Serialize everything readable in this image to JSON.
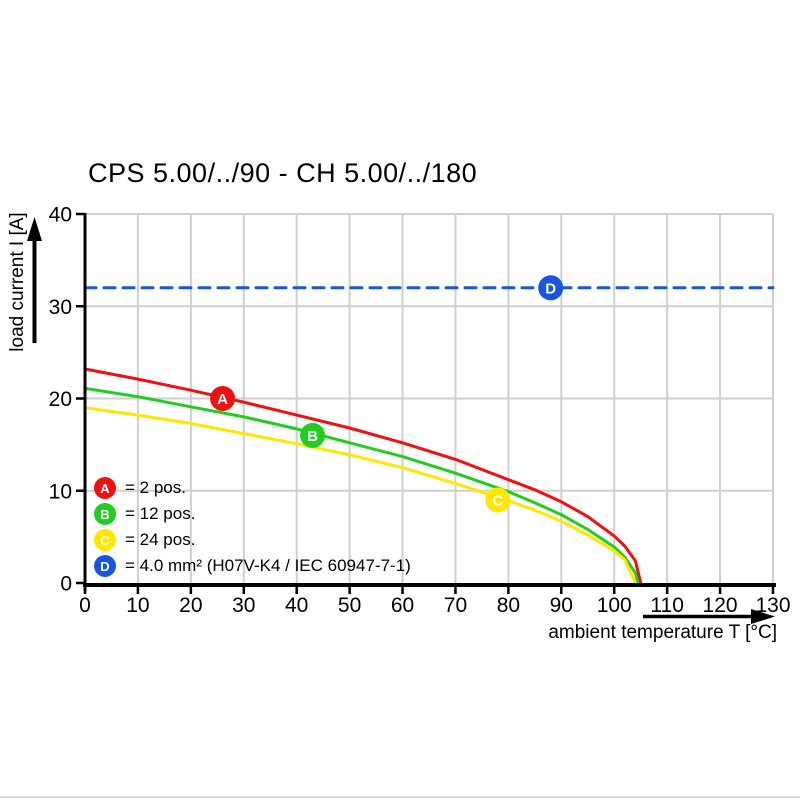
{
  "title": "CPS 5.00/../90 - CH 5.00/../180",
  "chart_data": {
    "type": "line",
    "title": "CPS 5.00/../90 - CH 5.00/../180",
    "xlabel": "ambient temperature T [°C]",
    "ylabel": "load current I [A]",
    "xlim": [
      0,
      130
    ],
    "ylim": [
      0,
      40
    ],
    "x_ticks": [
      0,
      10,
      20,
      30,
      40,
      50,
      60,
      70,
      80,
      90,
      100,
      110,
      120,
      130
    ],
    "y_ticks": [
      0,
      10,
      20,
      30,
      40
    ],
    "grid": true,
    "grid_color": "#cfcfcf",
    "axis_color": "#000000",
    "legend_position": "inside-lower-left",
    "series": [
      {
        "id": "A",
        "name": "2 pos.",
        "color": "#ee1111",
        "style": "solid",
        "points": [
          [
            0,
            23.2
          ],
          [
            10,
            22.1
          ],
          [
            20,
            20.9
          ],
          [
            30,
            19.6
          ],
          [
            40,
            18.2
          ],
          [
            50,
            16.8
          ],
          [
            60,
            15.2
          ],
          [
            70,
            13.4
          ],
          [
            80,
            11.2
          ],
          [
            85,
            10.1
          ],
          [
            90,
            8.8
          ],
          [
            95,
            7.2
          ],
          [
            100,
            5.1
          ],
          [
            102,
            4.0
          ],
          [
            104,
            2.4
          ],
          [
            105,
            0
          ]
        ]
      },
      {
        "id": "B",
        "name": "12 pos.",
        "color": "#22cc22",
        "style": "solid",
        "points": [
          [
            0,
            21.1
          ],
          [
            10,
            20.2
          ],
          [
            20,
            19.1
          ],
          [
            30,
            18.0
          ],
          [
            40,
            16.7
          ],
          [
            50,
            15.2
          ],
          [
            60,
            13.7
          ],
          [
            70,
            11.9
          ],
          [
            80,
            9.9
          ],
          [
            85,
            8.7
          ],
          [
            90,
            7.4
          ],
          [
            95,
            5.8
          ],
          [
            100,
            3.9
          ],
          [
            102,
            2.8
          ],
          [
            104,
            1.1
          ],
          [
            104.5,
            0
          ]
        ]
      },
      {
        "id": "C",
        "name": "24 pos.",
        "color": "#ffe800",
        "style": "solid",
        "points": [
          [
            0,
            19.0
          ],
          [
            10,
            18.2
          ],
          [
            20,
            17.3
          ],
          [
            30,
            16.2
          ],
          [
            40,
            15.1
          ],
          [
            50,
            13.9
          ],
          [
            60,
            12.5
          ],
          [
            70,
            10.8
          ],
          [
            80,
            8.9
          ],
          [
            85,
            7.9
          ],
          [
            90,
            6.7
          ],
          [
            95,
            5.2
          ],
          [
            100,
            3.5
          ],
          [
            102,
            2.5
          ],
          [
            104,
            0
          ]
        ]
      },
      {
        "id": "D",
        "name": "4.0 mm² (H07V-K4 / IEC 60947-7-1)",
        "color": "#1a55e0",
        "style": "dashed",
        "points": [
          [
            0,
            32
          ],
          [
            130,
            32
          ]
        ]
      }
    ],
    "markers": [
      {
        "label": "A",
        "x": 26,
        "y": 20,
        "color": "#ee1111"
      },
      {
        "label": "B",
        "x": 43,
        "y": 16,
        "color": "#22cc22"
      },
      {
        "label": "C",
        "x": 78,
        "y": 9,
        "color": "#ffe800"
      },
      {
        "label": "D",
        "x": 88,
        "y": 32,
        "color": "#1a55e0"
      }
    ],
    "legend": [
      {
        "label": "A",
        "color": "#ee1111",
        "text": "= 2 pos."
      },
      {
        "label": "B",
        "color": "#22cc22",
        "text": "= 12 pos."
      },
      {
        "label": "C",
        "color": "#ffe800",
        "text": "= 24 pos."
      },
      {
        "label": "D",
        "color": "#1a55e0",
        "text": "= 4.0 mm² (H07V-K4 / IEC 60947-7-1)"
      }
    ]
  }
}
